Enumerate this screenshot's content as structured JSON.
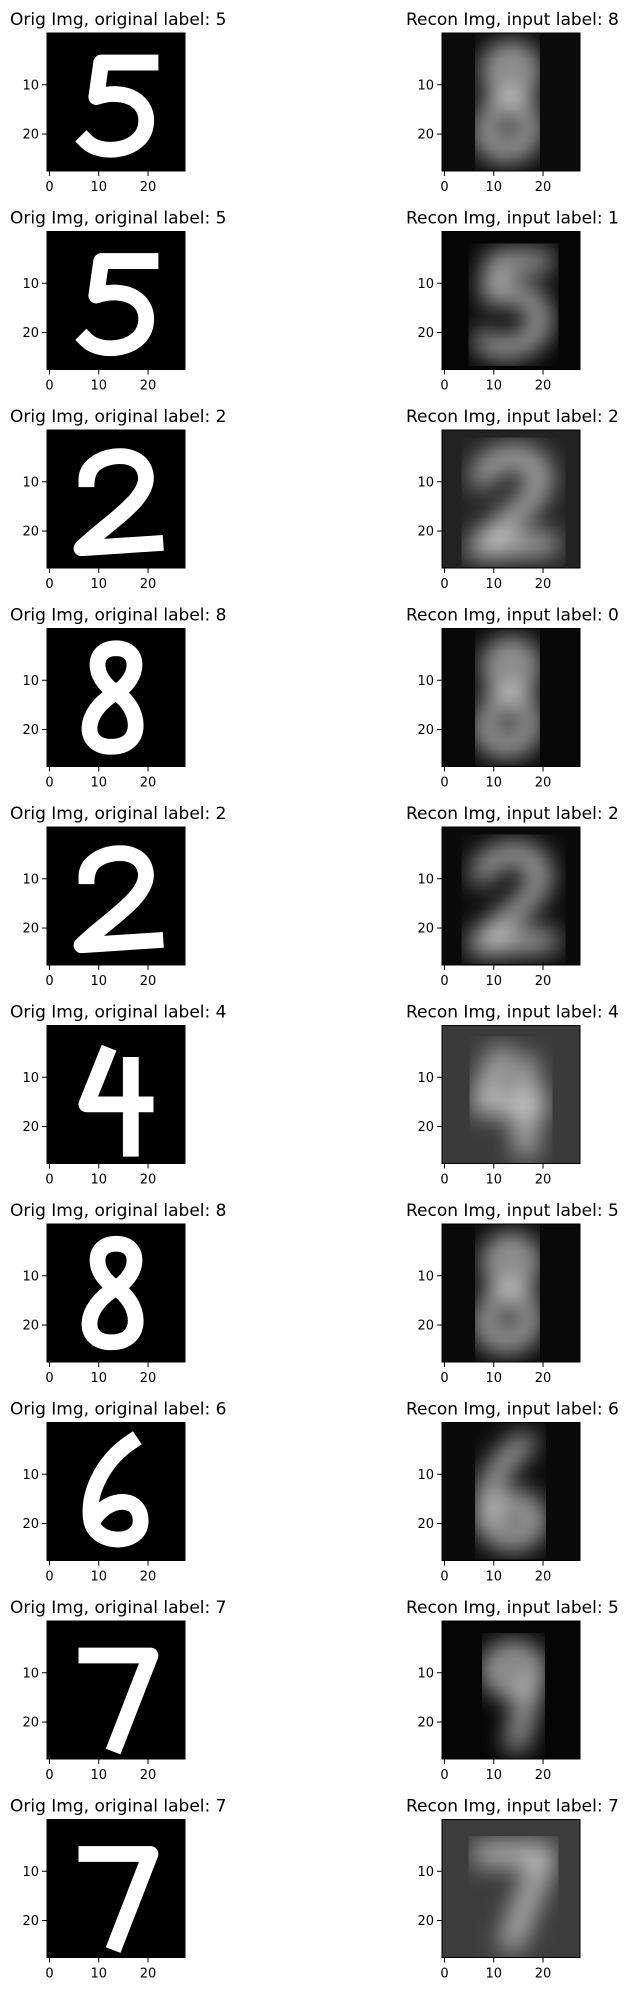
{
  "chart_data": {
    "type": "image-grid",
    "axes": {
      "x_ticks": [
        "0",
        "10",
        "20"
      ],
      "y_ticks": [
        "10",
        "20"
      ],
      "xlim": [
        -0.5,
        27.5
      ],
      "ylim": [
        27.5,
        -0.5
      ]
    },
    "rows": [
      {
        "orig": {
          "title": "Orig Img, original label: 5",
          "digit": "5"
        },
        "recon": {
          "title": "Recon Img, input label: 8",
          "digit": "8",
          "bg": "#0b0b0b"
        }
      },
      {
        "orig": {
          "title": "Orig Img, original label: 5",
          "digit": "5"
        },
        "recon": {
          "title": "Recon Img, input label: 1",
          "digit": "5",
          "bg": "#050505"
        }
      },
      {
        "orig": {
          "title": "Orig Img, original label: 2",
          "digit": "2"
        },
        "recon": {
          "title": "Recon Img, input label: 2",
          "digit": "2",
          "bg": "#222222"
        }
      },
      {
        "orig": {
          "title": "Orig Img, original label: 8",
          "digit": "8"
        },
        "recon": {
          "title": "Recon Img, input label: 0",
          "digit": "8",
          "bg": "#080808"
        }
      },
      {
        "orig": {
          "title": "Orig Img, original label: 2",
          "digit": "2"
        },
        "recon": {
          "title": "Recon Img, input label: 2",
          "digit": "2",
          "bg": "#0a0a0a"
        }
      },
      {
        "orig": {
          "title": "Orig Img, original label: 4",
          "digit": "4"
        },
        "recon": {
          "title": "Recon Img, input label: 4",
          "digit": "4",
          "bg": "#3a3a3a"
        }
      },
      {
        "orig": {
          "title": "Orig Img, original label: 8",
          "digit": "8"
        },
        "recon": {
          "title": "Recon Img, input label: 5",
          "digit": "8",
          "bg": "#090909"
        }
      },
      {
        "orig": {
          "title": "Orig Img, original label: 6",
          "digit": "6"
        },
        "recon": {
          "title": "Recon Img, input label: 6",
          "digit": "6",
          "bg": "#0a0a0a"
        }
      },
      {
        "orig": {
          "title": "Orig Img, original label: 7",
          "digit": "7"
        },
        "recon": {
          "title": "Recon Img, input label: 5",
          "digit": "9",
          "bg": "#050505"
        }
      },
      {
        "orig": {
          "title": "Orig Img, original label: 7",
          "digit": "7"
        },
        "recon": {
          "title": "Recon Img, input label: 7",
          "digit": "7",
          "bg": "#3c3c3c"
        }
      }
    ]
  },
  "colors": {
    "orig_bg": "#000000",
    "digit": "#ffffff"
  }
}
